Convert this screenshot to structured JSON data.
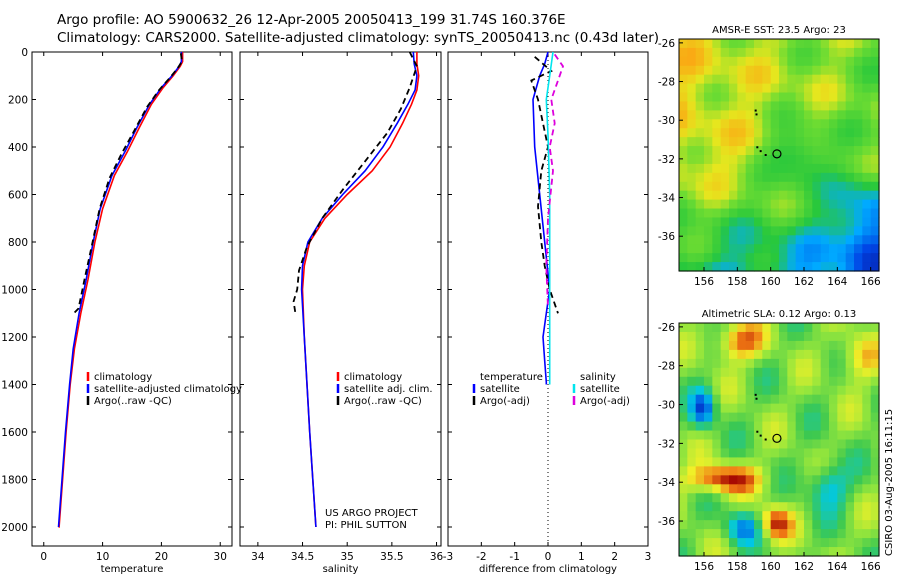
{
  "header": {
    "line1": "Argo profile: AO 5900632_26 12-Apr-2005 20050413_199 31.74S 160.376E",
    "line2": "Climatology: CARS2000. Satellite-adjusted climatology: synTS_20050413.nc (0.43d later)"
  },
  "credits": {
    "project": "US ARGO PROJECT",
    "pi": "PI: PHIL SUTTON",
    "stamp": "CSIRO 03-Aug-2005 16:11:15"
  },
  "colors": {
    "clim": "#ff0000",
    "sat": "#0000ff",
    "argo": "#000000",
    "sal": "#00e5ee",
    "sal_argo": "#dd00dd"
  },
  "depth_ticks": [
    0,
    200,
    400,
    600,
    800,
    1000,
    1200,
    1400,
    1600,
    1800,
    2000
  ],
  "chart_data": [
    {
      "type": "line",
      "title": "",
      "xlabel": "temperature",
      "ylabel": "",
      "xlim": [
        -2,
        32
      ],
      "ylim": [
        2080,
        0
      ],
      "x_ticks": [
        0,
        10,
        20,
        30
      ],
      "legend": [
        "climatology",
        "satellite-adjusted climatology",
        "Argo(..raw -QC)"
      ],
      "series": [
        {
          "name": "climatology",
          "color": "#ff0000",
          "dash": "",
          "x": [
            23.6,
            23.6,
            23.2,
            22.0,
            20.3,
            18.3,
            16.2,
            14.2,
            12.0,
            10.0,
            8.7,
            7.5,
            6.3,
            5.2,
            4.5,
            3.8,
            3.2,
            2.6,
            2.5
          ],
          "y": [
            0,
            40,
            60,
            100,
            150,
            220,
            320,
            420,
            520,
            660,
            800,
            960,
            1100,
            1250,
            1400,
            1600,
            1800,
            2000,
            2000
          ]
        },
        {
          "name": "satellite-adjusted climatology",
          "color": "#0000ff",
          "dash": "",
          "x": [
            23.4,
            23.4,
            23.0,
            21.8,
            20.0,
            18.0,
            15.8,
            13.8,
            11.6,
            9.6,
            8.4,
            7.2,
            6.0,
            5.0,
            4.4,
            3.7,
            3.1,
            2.5,
            2.5
          ],
          "y": [
            0,
            40,
            60,
            100,
            150,
            220,
            320,
            420,
            520,
            660,
            800,
            960,
            1100,
            1250,
            1400,
            1600,
            1800,
            2000,
            2000
          ]
        },
        {
          "name": "Argo(..raw -QC)",
          "color": "#000000",
          "dash": "6,4",
          "x": [
            23.3,
            23.5,
            22.7,
            21.4,
            19.6,
            17.6,
            15.4,
            13.2,
            11.2,
            9.5,
            8.3,
            7.0,
            5.9,
            5.1
          ],
          "y": [
            5,
            40,
            70,
            110,
            160,
            230,
            330,
            430,
            530,
            660,
            800,
            950,
            1080,
            1100
          ]
        }
      ]
    },
    {
      "type": "line",
      "title": "",
      "xlabel": "salinity",
      "ylabel": "",
      "xlim": [
        33.8,
        36.05
      ],
      "ylim": [
        2080,
        0
      ],
      "x_ticks": [
        34,
        34.5,
        35,
        35.5,
        36
      ],
      "legend": [
        "climatology",
        "satellite adj. clim.",
        "Argo(..raw -QC)"
      ],
      "series": [
        {
          "name": "climatology",
          "color": "#ff0000",
          "dash": "",
          "x": [
            35.78,
            35.78,
            35.8,
            35.78,
            35.72,
            35.62,
            35.48,
            35.28,
            35.0,
            34.75,
            34.58,
            34.52,
            34.5,
            34.52,
            34.58,
            34.65
          ],
          "y": [
            0,
            50,
            100,
            160,
            220,
            300,
            400,
            500,
            600,
            700,
            800,
            900,
            1000,
            1200,
            1600,
            2000
          ]
        },
        {
          "name": "satellite adj. clim.",
          "color": "#0000ff",
          "dash": "",
          "x": [
            35.74,
            35.75,
            35.78,
            35.76,
            35.68,
            35.56,
            35.4,
            35.2,
            34.95,
            34.72,
            34.56,
            34.5,
            34.49,
            34.52,
            34.58,
            34.65
          ],
          "y": [
            0,
            50,
            100,
            160,
            220,
            300,
            400,
            500,
            600,
            700,
            800,
            900,
            1000,
            1200,
            1600,
            2000
          ]
        },
        {
          "name": "Argo(..raw -QC)",
          "color": "#000000",
          "dash": "6,4",
          "x": [
            35.7,
            35.78,
            35.7,
            35.6,
            35.45,
            35.2,
            34.95,
            34.72,
            34.55,
            34.46,
            34.44,
            34.4,
            34.42
          ],
          "y": [
            0,
            60,
            150,
            240,
            340,
            460,
            580,
            700,
            820,
            920,
            1000,
            1050,
            1100
          ]
        }
      ]
    },
    {
      "type": "line",
      "title": "",
      "xlabel": "difference from climatology",
      "ylabel": "",
      "xlim": [
        -3,
        3
      ],
      "ylim": [
        2080,
        0
      ],
      "x_ticks": [
        -3,
        -2,
        -1,
        0,
        1,
        2,
        3
      ],
      "legend_left": [
        "temperature",
        "satellite",
        "Argo(-adj)"
      ],
      "legend_right": [
        "salinity",
        "satellite",
        "Argo(-adj)"
      ],
      "series": [
        {
          "name": "temperature satellite",
          "color": "#0000ff",
          "dash": "",
          "x": [
            0.0,
            -0.1,
            -0.25,
            -0.45,
            -0.4,
            -0.25,
            -0.1,
            0.05,
            -0.05,
            -0.15,
            -0.1,
            -0.05,
            -0.05
          ],
          "y": [
            0,
            50,
            100,
            200,
            400,
            600,
            800,
            1000,
            1100,
            1200,
            1300,
            1390,
            1400
          ]
        },
        {
          "name": "temperature Argo(-adj)",
          "color": "#000000",
          "dash": "6,4",
          "x": [
            -0.4,
            0.1,
            -0.5,
            -0.3,
            -0.15,
            0.0,
            -0.2,
            -0.3,
            -0.2,
            -0.1,
            0.05,
            0.3
          ],
          "y": [
            20,
            80,
            120,
            200,
            300,
            400,
            500,
            650,
            800,
            900,
            1000,
            1100
          ]
        },
        {
          "name": "salinity satellite",
          "color": "#00e5ee",
          "dash": "",
          "x": [
            0.15,
            0.05,
            -0.05,
            0.0,
            0.05,
            0.05,
            0.05,
            0.05,
            0.05
          ],
          "y": [
            0,
            100,
            200,
            350,
            600,
            900,
            1200,
            1350,
            1400
          ]
        },
        {
          "name": "salinity Argo(-adj)",
          "color": "#dd00dd",
          "dash": "6,4",
          "x": [
            0.2,
            0.45,
            0.3,
            0.1,
            0.2,
            0.05,
            0.15,
            0.0,
            -0.05,
            0.0
          ],
          "y": [
            10,
            60,
            120,
            200,
            300,
            400,
            500,
            700,
            900,
            1080
          ]
        }
      ]
    },
    {
      "type": "heatmap",
      "title": "AMSR-E SST: 23.5 Argo: 23",
      "xlim": [
        154.5,
        166.5
      ],
      "ylim": [
        -37.8,
        -25.8
      ],
      "x_ticks": [
        156,
        158,
        160,
        162,
        164,
        166
      ],
      "y_ticks": [
        -26,
        -28,
        -30,
        -32,
        -34,
        -36
      ],
      "marker": {
        "lon": 160.376,
        "lat": -31.74
      }
    },
    {
      "type": "heatmap",
      "title": "Altimetric SLA: 0.12 Argo: 0.13",
      "xlim": [
        154.5,
        166.5
      ],
      "ylim": [
        -37.8,
        -25.8
      ],
      "x_ticks": [
        156,
        158,
        160,
        162,
        164,
        166
      ],
      "y_ticks": [
        -26,
        -28,
        -30,
        -32,
        -34,
        -36
      ],
      "marker": {
        "lon": 160.376,
        "lat": -31.74
      }
    }
  ]
}
